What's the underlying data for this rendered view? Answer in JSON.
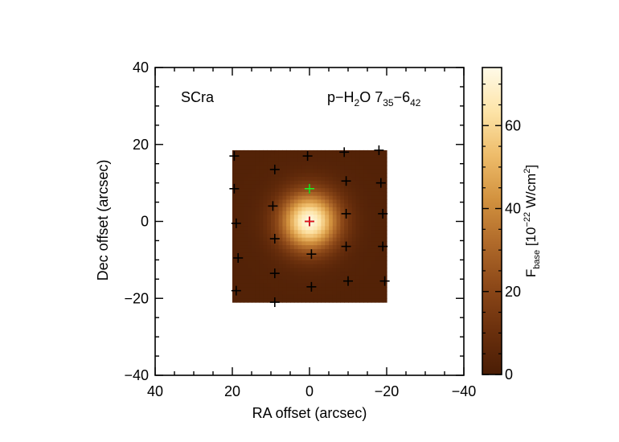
{
  "chart_data": {
    "type": "heatmap",
    "object_label": "SCra",
    "line_label": {
      "species": "p−H",
      "species_sub": "2",
      "species_after": "O 7",
      "upper_sub": "35",
      "dash": "−6",
      "lower_sub": "42"
    },
    "xlabel": "RA offset (arcsec)",
    "ylabel": "Dec offset (arcsec)",
    "xlim": [
      40,
      -40
    ],
    "ylim": [
      -40,
      40
    ],
    "xticks": [
      40,
      20,
      0,
      -20,
      -40
    ],
    "xtick_labels": [
      "40",
      "20",
      "0",
      "−20",
      "−40"
    ],
    "yticks": [
      40,
      20,
      0,
      -20,
      -40
    ],
    "ytick_labels": [
      "40",
      "20",
      "0",
      "−20",
      "−40"
    ],
    "map_extent": {
      "x": [
        20,
        -20
      ],
      "y": [
        -21,
        18.5
      ]
    },
    "peak": {
      "x": 0,
      "y": 0,
      "value": 72
    },
    "beam_sigma_arcsec": 5.2,
    "background_value": 3,
    "colorbar": {
      "range": [
        0,
        74
      ],
      "ticks": [
        0,
        20,
        40,
        60
      ],
      "tick_labels": [
        "0",
        "20",
        "40",
        "60"
      ],
      "label": {
        "base": "F",
        "sub": "base",
        "open": " [10",
        "sup": "−22",
        "units": " W/cm",
        "unit_sup": "2",
        "close": "]"
      }
    },
    "spaxels": [
      {
        "x": 19.5,
        "y": 17
      },
      {
        "x": 9,
        "y": 13.5
      },
      {
        "x": 0.5,
        "y": 17
      },
      {
        "x": -9,
        "y": 18
      },
      {
        "x": -18,
        "y": 18.5
      },
      {
        "x": 19.5,
        "y": 8.5
      },
      {
        "x": 9.5,
        "y": 4
      },
      {
        "x": 0,
        "y": 8.5
      },
      {
        "x": -9.5,
        "y": 10.5
      },
      {
        "x": -18.5,
        "y": 10
      },
      {
        "x": 19,
        "y": -0.5
      },
      {
        "x": 9,
        "y": -4.5
      },
      {
        "x": 0,
        "y": 0
      },
      {
        "x": -9.5,
        "y": 2
      },
      {
        "x": -19,
        "y": 2
      },
      {
        "x": 18.5,
        "y": -9.5
      },
      {
        "x": 9,
        "y": -13.5
      },
      {
        "x": -0.5,
        "y": -8.5
      },
      {
        "x": -9.5,
        "y": -6.5
      },
      {
        "x": -19,
        "y": -6.5
      },
      {
        "x": 19,
        "y": -18
      },
      {
        "x": 9,
        "y": -21
      },
      {
        "x": -0.5,
        "y": -17
      },
      {
        "x": -10,
        "y": -15.5
      },
      {
        "x": -19.5,
        "y": -15.5
      }
    ],
    "marker_colors": {
      "spaxel": "#000000",
      "center": "#e8101a",
      "pointing": "#22ee22"
    },
    "special_markers": {
      "center": {
        "x": 0,
        "y": 0
      },
      "pointing": {
        "x": 0,
        "y": 8.5
      }
    },
    "colormap": [
      "#4a1d05",
      "#6b300d",
      "#8c4818",
      "#b06a2a",
      "#d2923f",
      "#eebc6a",
      "#fde4a8",
      "#fffae8"
    ]
  }
}
